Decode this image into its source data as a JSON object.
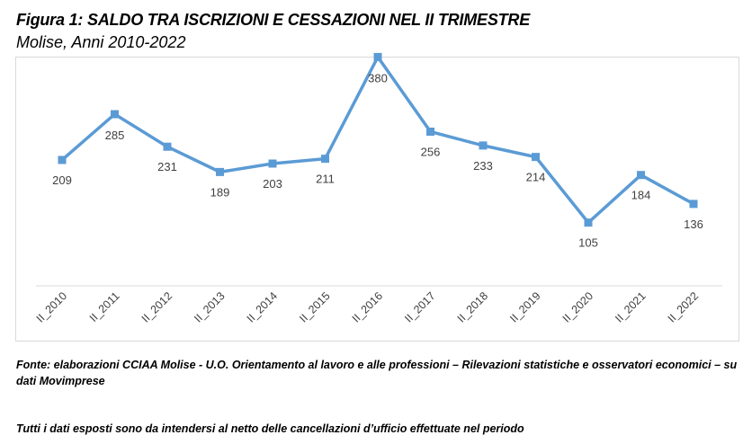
{
  "title": "Figura 1: SALDO TRA ISCRIZIONI E CESSAZIONI NEL II TRIMESTRE",
  "subtitle": "Molise, Anni 2010-2022",
  "source": "Fonte: elaborazioni CCIAA Molise - U.O. Orientamento al lavoro e alle professioni – Rilevazioni statistiche e osservatori economici – su dati Movimprese",
  "note": "Tutti i dati esposti sono da intendersi al netto delle cancellazioni d’ufficio effettuate nel periodo",
  "chart_data": {
    "type": "line",
    "categories": [
      "II_2010",
      "II_2011",
      "II_2012",
      "II_2013",
      "II_2014",
      "II_2015",
      "II_2016",
      "II_2017",
      "II_2018",
      "II_2019",
      "II_2020",
      "II_2021",
      "II_2022"
    ],
    "series": [
      {
        "values": [
          209,
          285,
          231,
          189,
          203,
          211,
          380,
          256,
          233,
          214,
          105,
          184,
          136
        ],
        "color": "#5b9bd5"
      }
    ],
    "data_labels": [
      "209",
      "285",
      "231",
      "189",
      "203",
      "211",
      "380",
      "256",
      "233",
      "214",
      "105",
      "184",
      "136"
    ],
    "ylim": [
      0,
      400
    ],
    "grid": false,
    "legend": "none"
  }
}
